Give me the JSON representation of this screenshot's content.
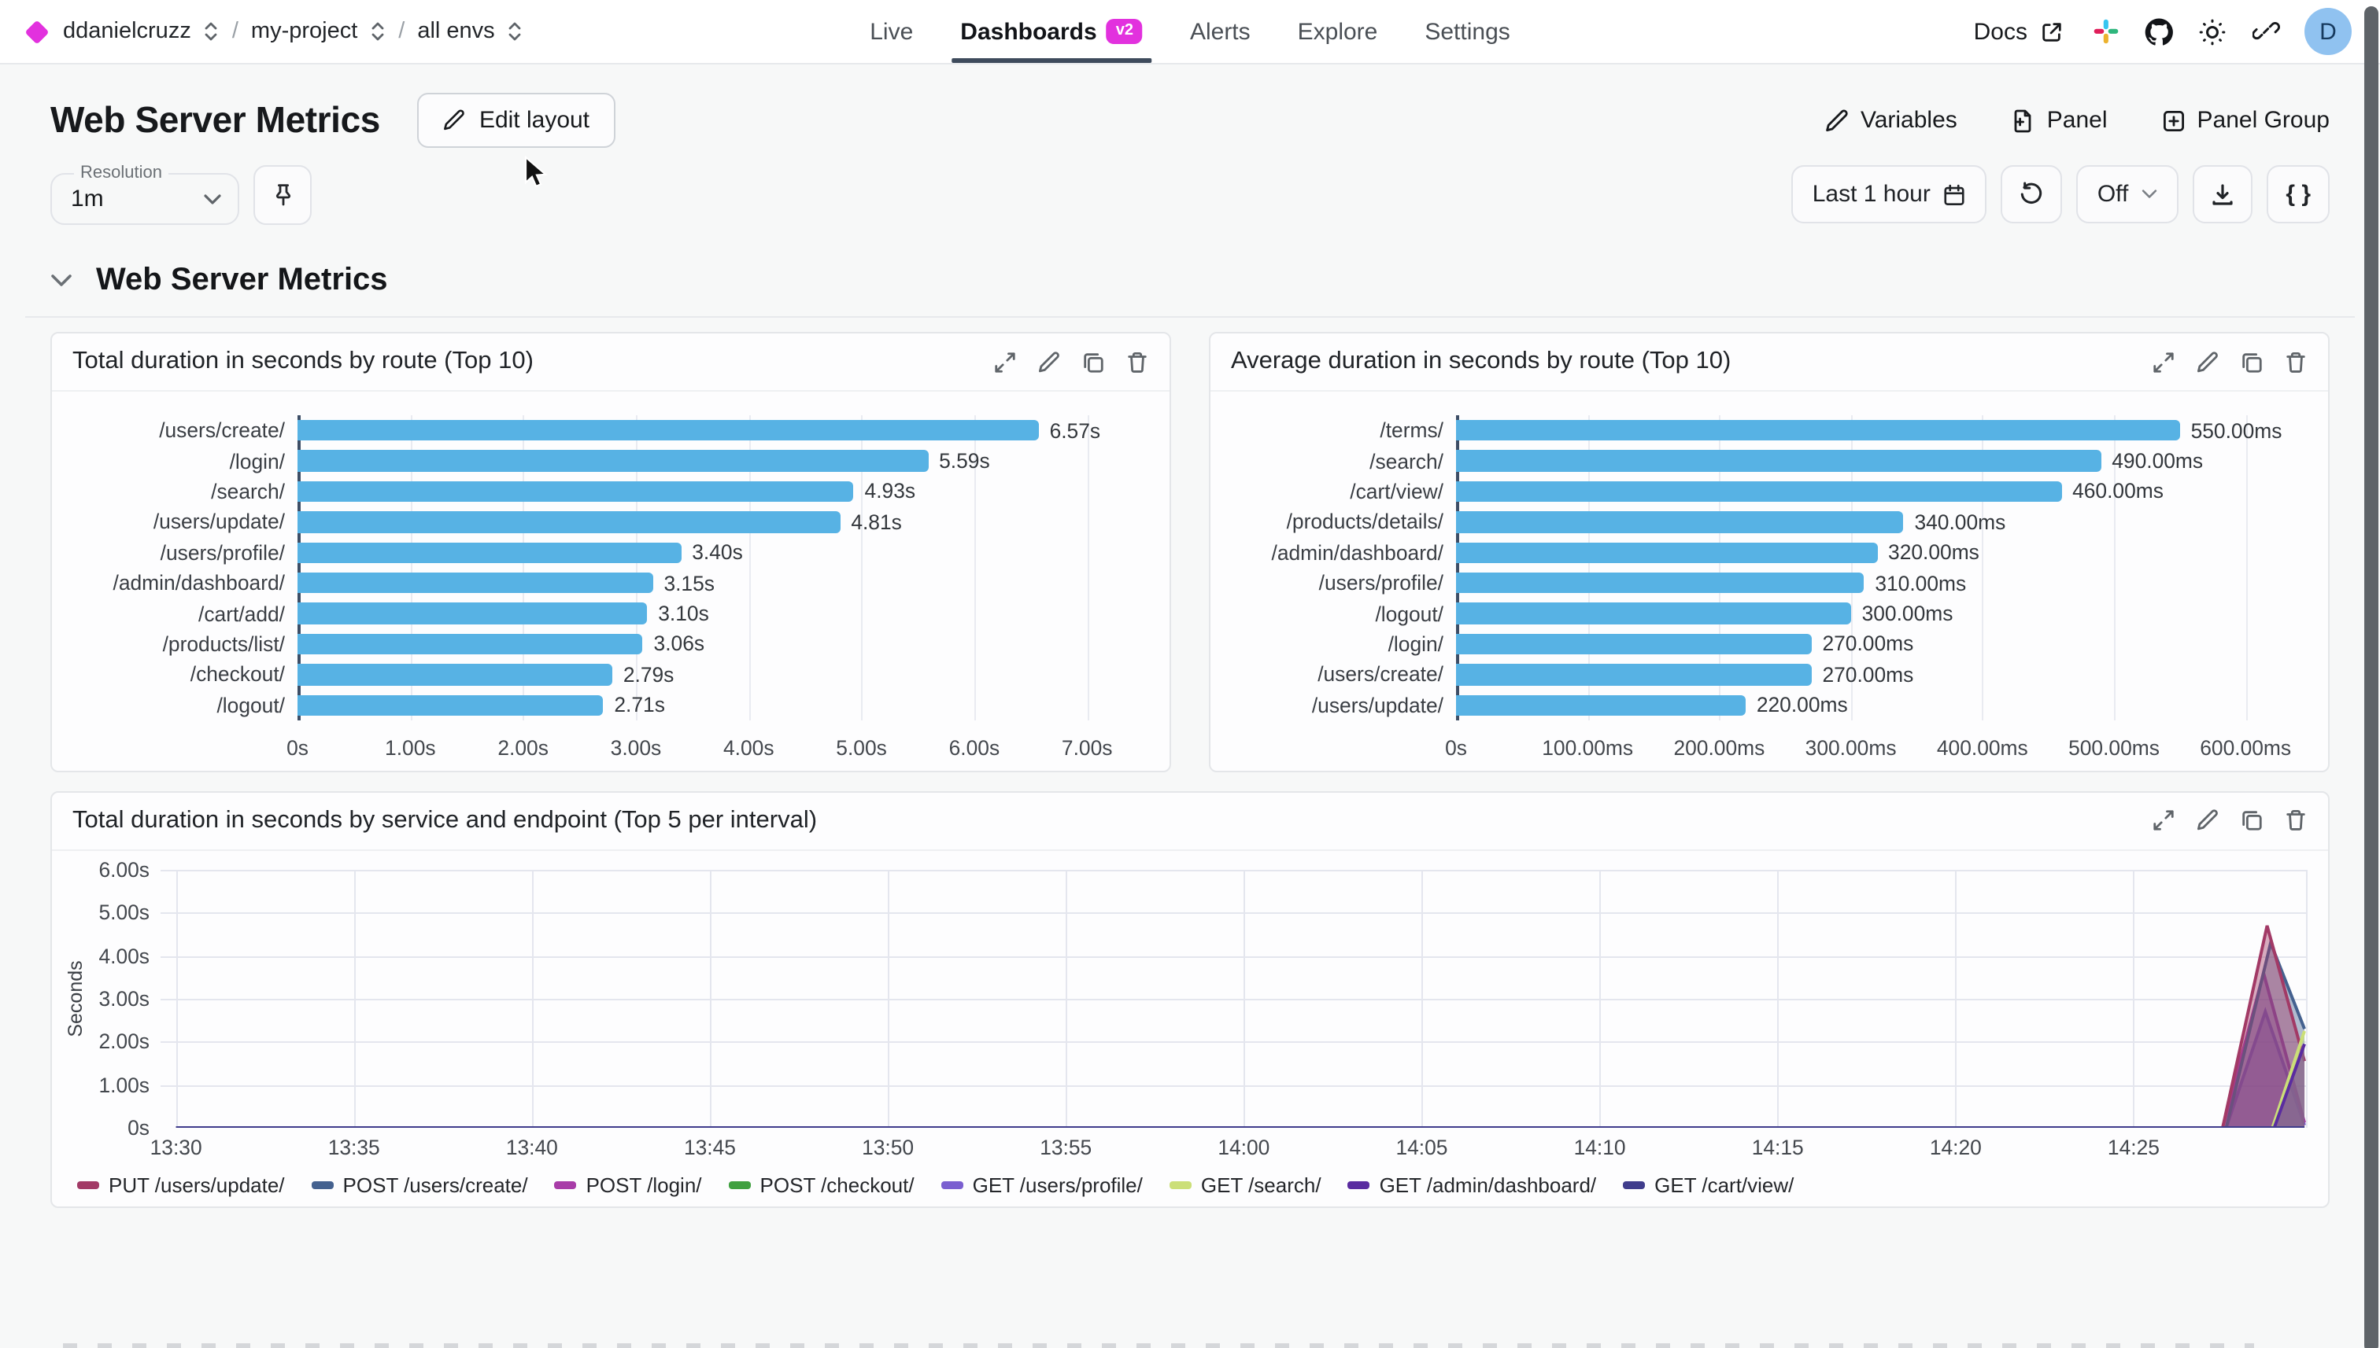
{
  "accent_color": "#e231de",
  "header": {
    "breadcrumb": [
      {
        "label": "ddanielcruzz"
      },
      {
        "label": "my-project"
      },
      {
        "label": "all envs"
      }
    ],
    "nav": [
      {
        "label": "Live"
      },
      {
        "label": "Dashboards",
        "badge": "v2",
        "active": true
      },
      {
        "label": "Alerts"
      },
      {
        "label": "Explore"
      },
      {
        "label": "Settings"
      }
    ],
    "docs_label": "Docs",
    "avatar_initial": "D"
  },
  "toolbar": {
    "title": "Web Server Metrics",
    "edit_layout_label": "Edit layout",
    "variables_label": "Variables",
    "panel_label": "Panel",
    "panel_group_label": "Panel Group"
  },
  "controls": {
    "resolution_label": "Resolution",
    "resolution_value": "1m",
    "time_range_label": "Last 1 hour",
    "refresh_state_label": "Off",
    "braces_label": "{ }"
  },
  "section": {
    "title": "Web Server Metrics"
  },
  "chart_data": [
    {
      "type": "bar",
      "orientation": "horizontal",
      "title": "Total duration in seconds by route (Top 10)",
      "categories": [
        "/users/create/",
        "/login/",
        "/search/",
        "/users/update/",
        "/users/profile/",
        "/admin/dashboard/",
        "/cart/add/",
        "/products/list/",
        "/checkout/",
        "/logout/"
      ],
      "values": [
        6.57,
        5.59,
        4.93,
        4.81,
        3.4,
        3.15,
        3.1,
        3.06,
        2.79,
        2.71
      ],
      "value_labels": [
        "6.57s",
        "5.59s",
        "4.93s",
        "4.81s",
        "3.40s",
        "3.15s",
        "3.10s",
        "3.06s",
        "2.79s",
        "2.71s"
      ],
      "x_ticks": [
        "0s",
        "1.00s",
        "2.00s",
        "3.00s",
        "4.00s",
        "5.00s",
        "6.00s",
        "7.00s"
      ],
      "axis_max": 7,
      "bar_color": "#57b2e4",
      "grid": true
    },
    {
      "type": "bar",
      "orientation": "horizontal",
      "title": "Average duration in seconds by route (Top 10)",
      "categories": [
        "/terms/",
        "/search/",
        "/cart/view/",
        "/products/details/",
        "/admin/dashboard/",
        "/users/profile/",
        "/logout/",
        "/login/",
        "/users/create/",
        "/users/update/"
      ],
      "values": [
        550,
        490,
        460,
        340,
        320,
        310,
        300,
        270,
        270,
        220
      ],
      "value_labels": [
        "550.00ms",
        "490.00ms",
        "460.00ms",
        "340.00ms",
        "320.00ms",
        "310.00ms",
        "300.00ms",
        "270.00ms",
        "270.00ms",
        "220.00ms"
      ],
      "x_ticks": [
        "0s",
        "100.00ms",
        "200.00ms",
        "300.00ms",
        "400.00ms",
        "500.00ms",
        "600.00ms"
      ],
      "axis_max": 600,
      "bar_color": "#57b2e4",
      "grid": true
    },
    {
      "type": "area",
      "title": "Total duration in seconds by service and endpoint (Top 5 per interval)",
      "ylabel": "Seconds",
      "y_ticks": [
        "0s",
        "1.00s",
        "2.00s",
        "3.00s",
        "4.00s",
        "5.00s",
        "6.00s"
      ],
      "ymax": 6,
      "x_ticks": [
        "13:30",
        "13:35",
        "13:40",
        "13:45",
        "13:50",
        "13:55",
        "14:00",
        "14:05",
        "14:10",
        "14:15",
        "14:20",
        "14:25"
      ],
      "x_minutes_span": 60,
      "legend_position": "bottom",
      "grid": true,
      "series": [
        {
          "name": "PUT /users/update/",
          "color": "#a23a66",
          "z": 4,
          "points": [
            [
              0,
              0
            ],
            [
              57.5,
              0
            ],
            [
              58.75,
              4.7
            ],
            [
              59.8,
              1.55
            ]
          ]
        },
        {
          "name": "POST /users/create/",
          "color": "#44618f",
          "z": 3,
          "points": [
            [
              0,
              0
            ],
            [
              57.6,
              0
            ],
            [
              58.85,
              4.3
            ],
            [
              59.8,
              2.3
            ]
          ]
        },
        {
          "name": "POST /login/",
          "color": "#a83ca8",
          "z": 2,
          "points": [
            [
              0,
              0
            ],
            [
              57.5,
              0
            ],
            [
              58.65,
              3.6
            ],
            [
              59.8,
              0.12
            ]
          ]
        },
        {
          "name": "POST /checkout/",
          "color": "#3fa03f",
          "z": 0,
          "points": [
            [
              0,
              0
            ],
            [
              59.8,
              0
            ]
          ]
        },
        {
          "name": "GET /users/profile/",
          "color": "#7a5fd0",
          "z": 1,
          "points": [
            [
              0,
              0
            ],
            [
              57.6,
              0
            ],
            [
              58.7,
              2.7
            ],
            [
              59.8,
              0.06
            ]
          ]
        },
        {
          "name": "GET /search/",
          "color": "#cbdf78",
          "z": 5,
          "points": [
            [
              0,
              0
            ],
            [
              58.9,
              0
            ],
            [
              59.8,
              2.25
            ]
          ]
        },
        {
          "name": "GET /admin/dashboard/",
          "color": "#5a2ca0",
          "z": 6,
          "points": [
            [
              0,
              0
            ],
            [
              58.95,
              0
            ],
            [
              59.8,
              1.95
            ]
          ]
        },
        {
          "name": "GET /cart/view/",
          "color": "#3f3c8c",
          "z": 7,
          "points": [
            [
              0,
              0
            ],
            [
              59.8,
              0
            ]
          ]
        }
      ]
    }
  ]
}
